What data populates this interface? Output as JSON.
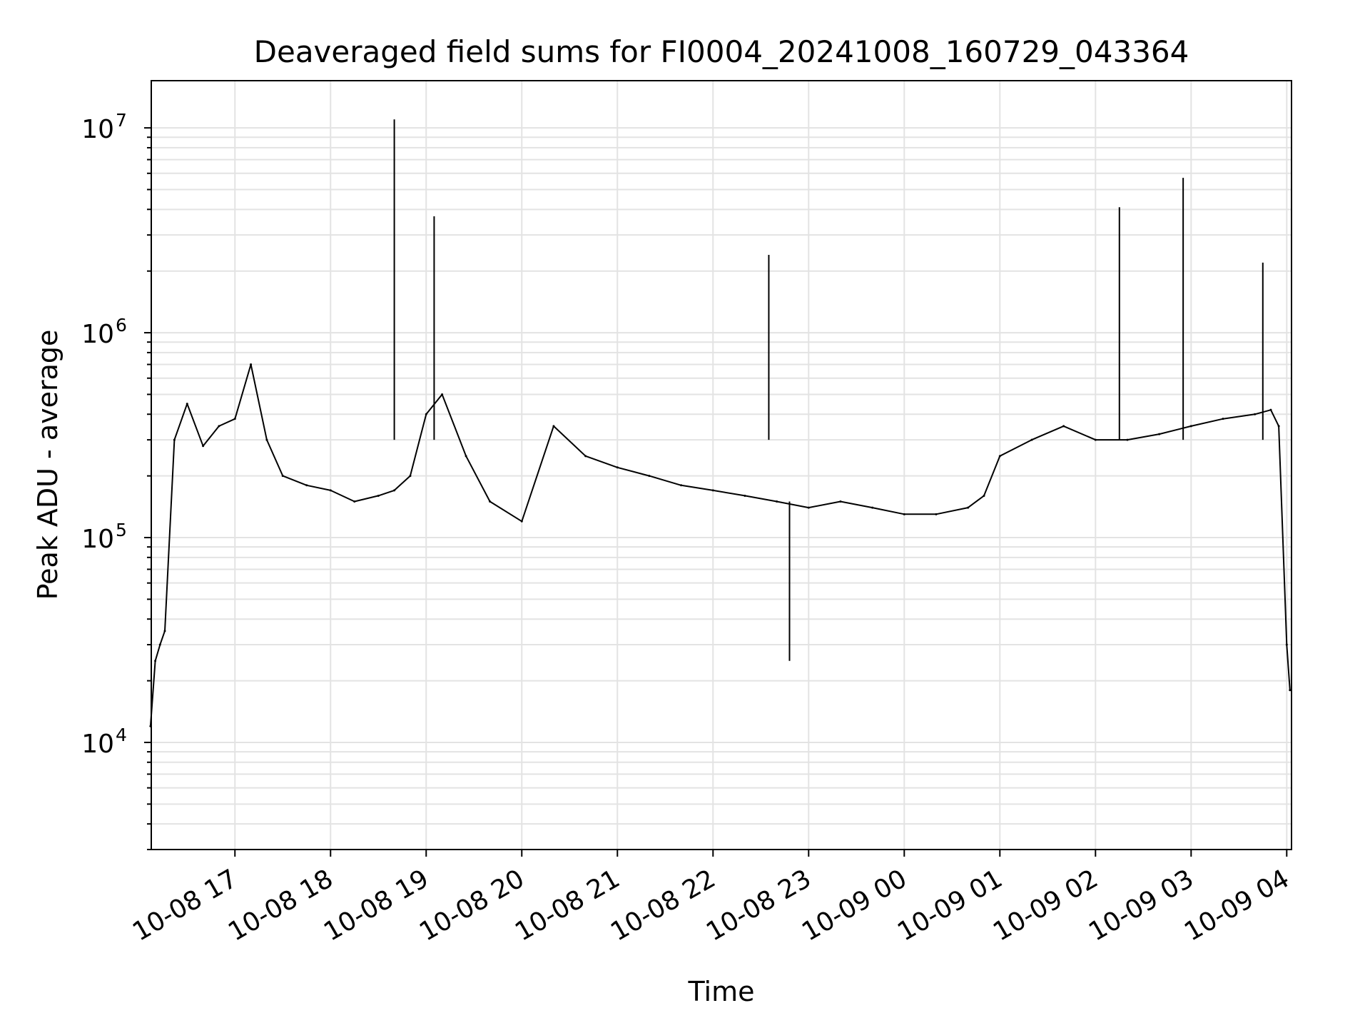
{
  "chart_data": {
    "type": "line",
    "title": "Deaveraged field sums for FI0004_20241008_160729_043364",
    "xlabel": "Time",
    "ylabel": "Peak ADU - average",
    "yscale": "log",
    "ylim": [
      3000,
      17000000
    ],
    "xlim": [
      "2024-10-08 16:07:30",
      "2024-10-09 04:03:00"
    ],
    "grid": "on (major and minor, light gray)",
    "line_color": "#000000",
    "x_ticks": [
      {
        "t": "2024-10-08 17:00",
        "label": "10-08 17"
      },
      {
        "t": "2024-10-08 18:00",
        "label": "10-08 18"
      },
      {
        "t": "2024-10-08 19:00",
        "label": "10-08 19"
      },
      {
        "t": "2024-10-08 20:00",
        "label": "10-08 20"
      },
      {
        "t": "2024-10-08 21:00",
        "label": "10-08 21"
      },
      {
        "t": "2024-10-08 22:00",
        "label": "10-08 22"
      },
      {
        "t": "2024-10-08 23:00",
        "label": "10-08 23"
      },
      {
        "t": "2024-10-09 00:00",
        "label": "10-09 00"
      },
      {
        "t": "2024-10-09 01:00",
        "label": "10-09 01"
      },
      {
        "t": "2024-10-09 02:00",
        "label": "10-09 02"
      },
      {
        "t": "2024-10-09 03:00",
        "label": "10-09 03"
      },
      {
        "t": "2024-10-09 04:00",
        "label": "10-09 04"
      }
    ],
    "y_ticks": [
      {
        "value": 10000,
        "base": "10",
        "exp": "4"
      },
      {
        "value": 100000,
        "base": "10",
        "exp": "5"
      },
      {
        "value": 1000000,
        "base": "10",
        "exp": "6"
      },
      {
        "value": 10000000,
        "base": "10",
        "exp": "7"
      }
    ],
    "series": [
      {
        "x": [
          "2024-10-08 16:07",
          "2024-10-08 16:10",
          "2024-10-08 16:13",
          "2024-10-08 16:16",
          "2024-10-08 16:22",
          "2024-10-08 16:30",
          "2024-10-08 16:40",
          "2024-10-08 16:50",
          "2024-10-08 17:00",
          "2024-10-08 17:10",
          "2024-10-08 17:20",
          "2024-10-08 17:30",
          "2024-10-08 17:45",
          "2024-10-08 18:00",
          "2024-10-08 18:15",
          "2024-10-08 18:30",
          "2024-10-08 18:40",
          "2024-10-08 18:50",
          "2024-10-08 19:00",
          "2024-10-08 19:10",
          "2024-10-08 19:25",
          "2024-10-08 19:40",
          "2024-10-08 20:00",
          "2024-10-08 20:20",
          "2024-10-08 20:40",
          "2024-10-08 21:00",
          "2024-10-08 21:20",
          "2024-10-08 21:40",
          "2024-10-08 22:00",
          "2024-10-08 22:20",
          "2024-10-08 22:40",
          "2024-10-08 23:00",
          "2024-10-08 23:20",
          "2024-10-08 23:40",
          "2024-10-09 00:00",
          "2024-10-09 00:20",
          "2024-10-09 00:40",
          "2024-10-09 00:50",
          "2024-10-09 01:00",
          "2024-10-09 01:20",
          "2024-10-09 01:40",
          "2024-10-09 02:00",
          "2024-10-09 02:20",
          "2024-10-09 02:40",
          "2024-10-09 03:00",
          "2024-10-09 03:20",
          "2024-10-09 03:40",
          "2024-10-09 03:50",
          "2024-10-09 03:55",
          "2024-10-09 04:00",
          "2024-10-09 04:02"
        ],
        "y": [
          12000,
          25000,
          30000,
          35000,
          300000,
          450000,
          280000,
          350000,
          380000,
          700000,
          300000,
          200000,
          180000,
          170000,
          150000,
          160000,
          170000,
          200000,
          400000,
          500000,
          250000,
          150000,
          120000,
          350000,
          250000,
          220000,
          200000,
          180000,
          170000,
          160000,
          150000,
          140000,
          150000,
          140000,
          130000,
          130000,
          140000,
          160000,
          250000,
          300000,
          350000,
          300000,
          300000,
          320000,
          350000,
          380000,
          400000,
          420000,
          350000,
          30000,
          18000
        ]
      }
    ],
    "annotations": [
      {
        "x": "2024-10-08 18:40",
        "y": 11000000
      },
      {
        "x": "2024-10-08 19:05",
        "y": 3700000
      },
      {
        "x": "2024-10-08 22:35",
        "y": 2400000
      },
      {
        "x": "2024-10-08 22:48",
        "y": 25000
      },
      {
        "x": "2024-10-09 02:15",
        "y": 4100000
      },
      {
        "x": "2024-10-09 02:55",
        "y": 5700000
      },
      {
        "x": "2024-10-09 03:45",
        "y": 2200000
      }
    ]
  }
}
